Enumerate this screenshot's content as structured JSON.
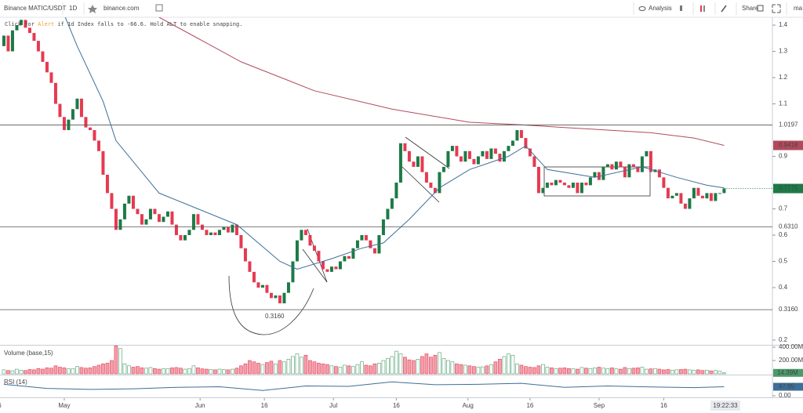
{
  "toolbar": {
    "symbol": "Binance MATIC/USDT",
    "interval": "1D",
    "source": "binance.com",
    "analysis": "Analysis",
    "share": "Share",
    "user": "ma",
    "hint": [
      "Click for ",
      "Alert",
      " if 1d Index falls to -66.6. Hold ALT to enable snapping."
    ]
  },
  "chart_data": {
    "type": "candlestick",
    "up_color": "#1d7a46",
    "down_color": "#e53a52",
    "xlim": [
      -0.9,
      178.2
    ],
    "ylim": [
      0.182,
      1.43
    ],
    "yticks": [
      1.4,
      1.3,
      1.2,
      1.1,
      0.9,
      0.7,
      0.6,
      0.5,
      0.4,
      0.2
    ],
    "levels": [
      1.0197,
      {
        "value": 0.631,
        "label": "0.6310"
      },
      {
        "value": 0.316,
        "label": "0.3160"
      }
    ],
    "open_first": 1.32,
    "close": [
      1.36,
      1.3,
      1.38,
      1.4,
      1.42,
      1.39,
      1.37,
      1.34,
      1.3,
      1.26,
      1.22,
      1.18,
      1.1,
      1.05,
      1.0,
      1.04,
      1.08,
      1.12,
      1.05,
      1.01,
      1.0,
      0.96,
      0.92,
      0.83,
      0.76,
      0.7,
      0.62,
      0.66,
      0.72,
      0.75,
      0.7,
      0.68,
      0.64,
      0.66,
      0.7,
      0.68,
      0.65,
      0.67,
      0.69,
      0.64,
      0.6,
      0.58,
      0.6,
      0.62,
      0.68,
      0.64,
      0.62,
      0.6,
      0.61,
      0.6,
      0.62,
      0.63,
      0.61,
      0.64,
      0.6,
      0.55,
      0.5,
      0.46,
      0.42,
      0.4,
      0.41,
      0.38,
      0.36,
      0.37,
      0.34,
      0.38,
      0.42,
      0.5,
      0.58,
      0.62,
      0.6,
      0.56,
      0.54,
      0.5,
      0.47,
      0.46,
      0.48,
      0.47,
      0.5,
      0.52,
      0.51,
      0.55,
      0.58,
      0.6,
      0.58,
      0.55,
      0.53,
      0.6,
      0.66,
      0.7,
      0.74,
      0.8,
      0.95,
      0.92,
      0.88,
      0.86,
      0.9,
      0.84,
      0.8,
      0.78,
      0.76,
      0.84,
      0.86,
      0.92,
      0.94,
      0.9,
      0.88,
      0.92,
      0.89,
      0.87,
      0.9,
      0.92,
      0.89,
      0.93,
      0.91,
      0.88,
      0.92,
      0.94,
      0.96,
      1.0,
      0.97,
      0.93,
      0.9,
      0.86,
      0.76,
      0.78,
      0.8,
      0.79,
      0.81,
      0.8,
      0.79,
      0.78,
      0.8,
      0.76,
      0.8,
      0.79,
      0.82,
      0.84,
      0.81,
      0.86,
      0.87,
      0.85,
      0.88,
      0.86,
      0.82,
      0.87,
      0.86,
      0.84,
      0.9,
      0.92,
      0.84,
      0.85,
      0.82,
      0.78,
      0.74,
      0.75,
      0.76,
      0.72,
      0.7,
      0.74,
      0.78,
      0.75,
      0.74,
      0.76,
      0.73,
      0.76,
      0.76,
      0.7775
    ],
    "ma_fast": {
      "color": "#3d6f98",
      "x": [
        14,
        17,
        23,
        26,
        36,
        45,
        54,
        59,
        64,
        68,
        76,
        83,
        88,
        94,
        101,
        108,
        117,
        121,
        126,
        137,
        148,
        156,
        163,
        167
      ],
      "values": [
        1.44,
        1.32,
        1.11,
        0.96,
        0.76,
        0.7,
        0.64,
        0.57,
        0.5,
        0.47,
        0.51,
        0.55,
        0.57,
        0.66,
        0.78,
        0.85,
        0.9,
        0.94,
        0.85,
        0.82,
        0.86,
        0.82,
        0.79,
        0.78
      ]
    },
    "ma_slow": {
      "color": "#b24a5c",
      "x": [
        36,
        55,
        72,
        90,
        108,
        120,
        130,
        140,
        150,
        160,
        167
      ],
      "values": [
        1.43,
        1.26,
        1.15,
        1.08,
        1.03,
        1.02,
        1.01,
        1.0,
        0.99,
        0.97,
        0.9418
      ]
    },
    "volume": {
      "title": "Volume (base,15)",
      "ylim": [
        0,
        424
      ],
      "yticks": [
        {
          "value": 400,
          "label": "400.00M"
        },
        {
          "value": 200,
          "label": "200.00M"
        }
      ],
      "last_label": "14.39M",
      "values": [
        60,
        50,
        45,
        70,
        55,
        50,
        65,
        60,
        80,
        70,
        90,
        85,
        120,
        100,
        90,
        75,
        80,
        110,
        95,
        85,
        90,
        110,
        130,
        150,
        160,
        200,
        420,
        380,
        150,
        120,
        100,
        110,
        90,
        85,
        95,
        80,
        70,
        75,
        80,
        90,
        95,
        85,
        70,
        80,
        120,
        90,
        75,
        70,
        65,
        60,
        70,
        65,
        60,
        70,
        85,
        120,
        150,
        200,
        180,
        160,
        140,
        170,
        190,
        150,
        200,
        180,
        220,
        260,
        300,
        250,
        280,
        200,
        180,
        160,
        150,
        140,
        120,
        110,
        100,
        130,
        120,
        110,
        140,
        180,
        130,
        120,
        150,
        160,
        200,
        230,
        260,
        340,
        300,
        250,
        210,
        200,
        220,
        260,
        300,
        250,
        280,
        320,
        230,
        200,
        180,
        150,
        140,
        130,
        120,
        110,
        100,
        105,
        120,
        140,
        180,
        220,
        260,
        300,
        280,
        150,
        130,
        110,
        100,
        95,
        120,
        140,
        100,
        90,
        80,
        85,
        90,
        80,
        75,
        70,
        95,
        85,
        80,
        90,
        100,
        85,
        80,
        90,
        75,
        70,
        95,
        80,
        85,
        90,
        100,
        70,
        75,
        80,
        70,
        60,
        65,
        55,
        60,
        65,
        70,
        60,
        55,
        60,
        50,
        55,
        45,
        50,
        40,
        14.39
      ]
    },
    "rsi": {
      "title": "RSI (14)",
      "color": "#3d6f98",
      "ylim": [
        0,
        100
      ],
      "yticks": [
        {
          "value": 0,
          "label": "0.00"
        }
      ],
      "x": [
        0,
        10,
        20,
        30,
        40,
        50,
        60,
        70,
        80,
        90,
        100,
        110,
        120,
        130,
        140,
        150,
        160,
        167
      ],
      "values": [
        60,
        40,
        35,
        38,
        45,
        48,
        30,
        52,
        50,
        72,
        58,
        60,
        65,
        45,
        52,
        47,
        44,
        47.95
      ]
    },
    "xticks": [
      {
        "value": -1,
        "label": "6"
      },
      {
        "value": 14,
        "label": "May"
      },
      {
        "value": 45.5,
        "label": "Jun"
      },
      {
        "value": 60.4,
        "label": "16"
      },
      {
        "value": 76.4,
        "label": "Jul"
      },
      {
        "value": 91,
        "label": "16"
      },
      {
        "value": 107.6,
        "label": "Aug"
      },
      {
        "value": 122,
        "label": "16"
      },
      {
        "value": 138,
        "label": "Sep"
      },
      {
        "value": 153,
        "label": "16"
      }
    ],
    "current_time": "19:22:33"
  }
}
